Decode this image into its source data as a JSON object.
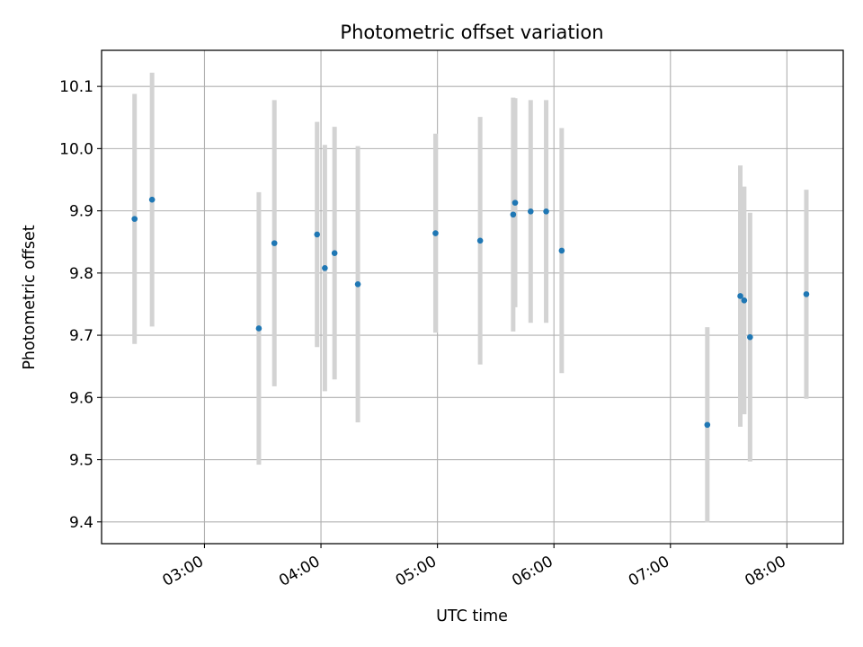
{
  "chart_data": {
    "type": "scatter",
    "title": "Photometric offset variation",
    "xlabel": "UTC time",
    "ylabel": "Photometric offset",
    "xlim": [
      "02:07",
      "08:29"
    ],
    "ylim": [
      9.365,
      10.158
    ],
    "grid": true,
    "x_ticks": [
      "03:00",
      "04:00",
      "05:00",
      "06:00",
      "07:00",
      "08:00"
    ],
    "y_ticks": [
      "9.4",
      "9.5",
      "9.6",
      "9.7",
      "9.8",
      "9.9",
      "10.0",
      "10.1"
    ],
    "colors": {
      "point": "#1f77b4",
      "errorbar": "#d3d3d3",
      "grid": "#b0b0b0"
    },
    "points": [
      {
        "x": "02:24",
        "y": 9.887,
        "err": 0.201
      },
      {
        "x": "02:33",
        "y": 9.918,
        "err": 0.204
      },
      {
        "x": "03:28",
        "y": 9.711,
        "err": 0.219
      },
      {
        "x": "03:36",
        "y": 9.848,
        "err": 0.23
      },
      {
        "x": "03:58",
        "y": 9.862,
        "err": 0.181
      },
      {
        "x": "04:02",
        "y": 9.808,
        "err": 0.198
      },
      {
        "x": "04:07",
        "y": 9.832,
        "err": 0.203
      },
      {
        "x": "04:19",
        "y": 9.782,
        "err": 0.222
      },
      {
        "x": "04:59",
        "y": 9.864,
        "err": 0.16
      },
      {
        "x": "05:22",
        "y": 9.852,
        "err": 0.199
      },
      {
        "x": "05:39",
        "y": 9.894,
        "err": 0.188
      },
      {
        "x": "05:40",
        "y": 9.913,
        "err": 0.168
      },
      {
        "x": "05:48",
        "y": 9.899,
        "err": 0.179
      },
      {
        "x": "05:56",
        "y": 9.899,
        "err": 0.179
      },
      {
        "x": "06:04",
        "y": 9.836,
        "err": 0.197
      },
      {
        "x": "07:19",
        "y": 9.556,
        "err": 0.157
      },
      {
        "x": "07:36",
        "y": 9.763,
        "err": 0.21
      },
      {
        "x": "07:38",
        "y": 9.756,
        "err": 0.183
      },
      {
        "x": "07:41",
        "y": 9.697,
        "err": 0.2
      },
      {
        "x": "08:10",
        "y": 9.766,
        "err": 0.168
      }
    ]
  }
}
